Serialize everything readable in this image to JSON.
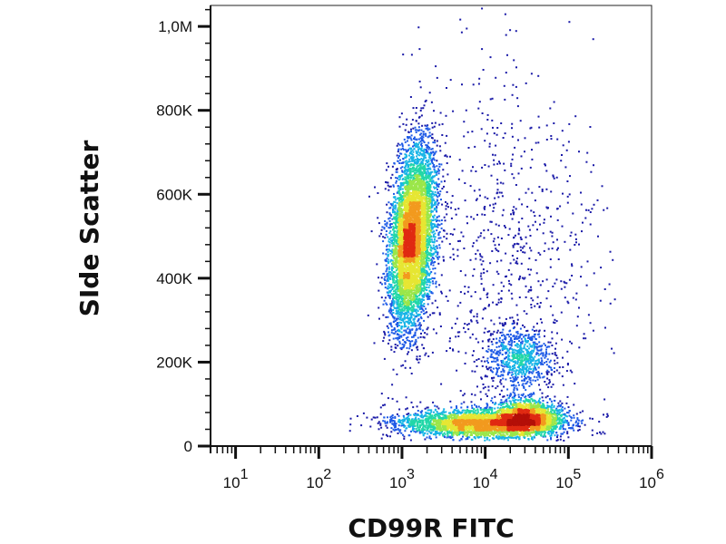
{
  "chart_data": {
    "type": "scatter",
    "subtype": "flow-cytometry-density-dot-plot",
    "title": "",
    "xlabel": "CD99R FITC",
    "ylabel": "SIde Scatter",
    "x_scale": "log",
    "xlim": [
      5,
      1000000
    ],
    "ylim": [
      0,
      1050000
    ],
    "x_ticks": [
      {
        "value": 10,
        "base": "10",
        "exp": "1"
      },
      {
        "value": 100,
        "base": "10",
        "exp": "2"
      },
      {
        "value": 1000,
        "base": "10",
        "exp": "3"
      },
      {
        "value": 10000,
        "base": "10",
        "exp": "4"
      },
      {
        "value": 100000,
        "base": "10",
        "exp": "5"
      },
      {
        "value": 1000000,
        "base": "10",
        "exp": "6"
      }
    ],
    "y_ticks": [
      {
        "value": 0,
        "label": "0"
      },
      {
        "value": 200000,
        "label": "200K"
      },
      {
        "value": 400000,
        "label": "400K"
      },
      {
        "value": 600000,
        "label": "600K"
      },
      {
        "value": 800000,
        "label": "800K"
      },
      {
        "value": 1000000,
        "label": "1,0M"
      }
    ],
    "color_scale": [
      "#1a1aa8",
      "#1e5ae6",
      "#17b4e6",
      "#22d7a8",
      "#9be64a",
      "#e6e632",
      "#f29a1e",
      "#e02a12",
      "#b40f08"
    ],
    "grid": false,
    "legend": "none",
    "series": [
      {
        "x_center": 1300,
        "y_center": 500000,
        "x_spread_log10": 0.13,
        "y_spread": 110000,
        "tilt": 0.18,
        "share": 0.48
      },
      {
        "x_center": 9000,
        "y_center": 55000,
        "x_spread_log10": 0.5,
        "y_spread": 16000,
        "tilt": 0.0,
        "share": 0.25
      },
      {
        "x_center": 30000,
        "y_center": 70000,
        "x_spread_log10": 0.2,
        "y_spread": 22000,
        "tilt": 0.0,
        "share": 0.14
      },
      {
        "x_center": 25000,
        "y_center": 210000,
        "x_spread_log10": 0.2,
        "y_spread": 38000,
        "tilt": 0.0,
        "share": 0.06
      },
      {
        "x_center": 20000,
        "y_center": 400000,
        "x_spread_log10": 0.55,
        "y_spread": 240000,
        "tilt": 0.0,
        "share": 0.07
      }
    ]
  }
}
